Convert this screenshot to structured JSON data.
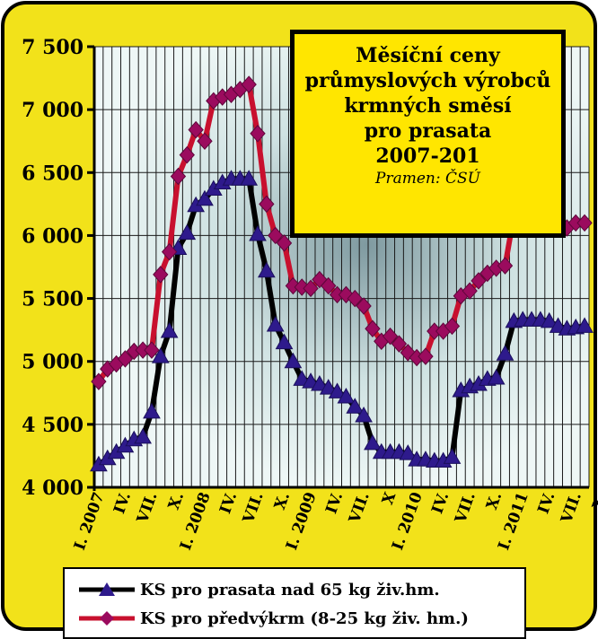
{
  "chart_data": {
    "type": "line",
    "title": [
      "Měsíční ceny",
      "průmyslových výrobců",
      "krmných směsí",
      "pro prasata",
      "2007-201"
    ],
    "source": "Pramen: ČSÚ",
    "y_ticks": [
      "7 500",
      "7 000",
      "6 500",
      "6 000",
      "5 500",
      "5 000",
      "4 500",
      "4 000"
    ],
    "ylim": [
      4000,
      7500
    ],
    "x_tick_labels": [
      "I. 2007",
      "IV.",
      "VII.",
      "X.",
      "I. 2008",
      "IV.",
      "VII.",
      "X.",
      "I. 2009",
      "IV.",
      "VII.",
      "X",
      "I. 2010",
      "IV.",
      "VII.",
      "X.",
      "I. 2011",
      "IV.",
      "VII.",
      "X."
    ],
    "grid": true,
    "legend_position": "bottom",
    "series": [
      {
        "name": "KS pro prasata nad 65 kg živ.hm.",
        "color": "#000000",
        "marker_color": "#2e1a8c",
        "marker": "triangle",
        "values": [
          4180,
          4230,
          4280,
          4330,
          4380,
          4400,
          4600,
          5040,
          5240,
          5900,
          6020,
          6240,
          6290,
          6370,
          6420,
          6450,
          6450,
          6450,
          6010,
          5720,
          5290,
          5150,
          5000,
          4860,
          4840,
          4820,
          4790,
          4760,
          4720,
          4640,
          4570,
          4350,
          4280,
          4280,
          4280,
          4270,
          4220,
          4220,
          4210,
          4210,
          4240,
          4770,
          4800,
          4820,
          4860,
          4870,
          5060,
          5320,
          5330,
          5330,
          5330,
          5320,
          5280,
          5260,
          5270,
          5280
        ]
      },
      {
        "name": "KS pro předvýkrm (8-25 kg živ. hm.)",
        "color": "#c8102e",
        "marker_color": "#9b0b5e",
        "marker": "diamond",
        "values": [
          4840,
          4940,
          4980,
          5020,
          5080,
          5090,
          5090,
          5690,
          5870,
          6470,
          6640,
          6840,
          6750,
          7070,
          7100,
          7120,
          7160,
          7200,
          6810,
          6250,
          6000,
          5940,
          5600,
          5590,
          5580,
          5650,
          5600,
          5530,
          5530,
          5500,
          5440,
          5260,
          5160,
          5200,
          5140,
          5070,
          5030,
          5040,
          5240,
          5240,
          5280,
          5520,
          5560,
          5640,
          5700,
          5740,
          5760,
          6160,
          6160,
          6150,
          6150,
          6120,
          6080,
          6060,
          6100,
          6100
        ]
      }
    ]
  }
}
